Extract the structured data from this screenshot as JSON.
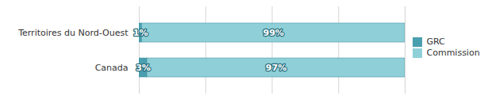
{
  "chart_data": {
    "type": "bar",
    "orientation": "horizontal",
    "stacked": true,
    "categories": [
      "Territoires du Nord-Ouest",
      "Canada"
    ],
    "series": [
      {
        "name": "GRC",
        "color": "#4a9faf",
        "values": [
          1,
          3
        ],
        "value_labels": [
          "1%",
          "3%"
        ]
      },
      {
        "name": "Commission",
        "color": "#8fd0d8",
        "values": [
          99,
          97
        ],
        "value_labels": [
          "99%",
          "97%"
        ]
      }
    ],
    "xlim": [
      0,
      100
    ],
    "xticks": [
      0,
      25,
      50,
      75,
      100
    ],
    "grid": true,
    "data_labels": true,
    "tick_labels": "y",
    "legend": "right"
  }
}
